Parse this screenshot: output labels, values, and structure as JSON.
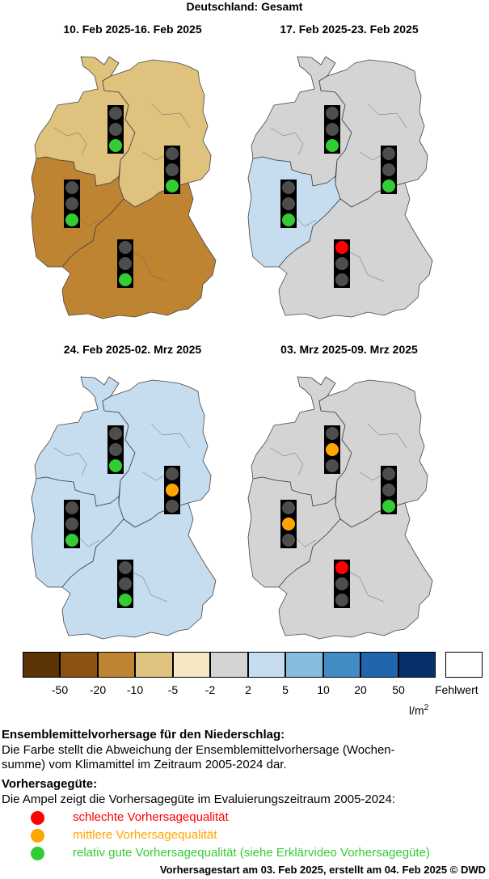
{
  "title": "Deutschland: Gesamt",
  "colors": {
    "lt_-50": "#5a3306",
    "-50_-20": "#8c5210",
    "-20_-10": "#bf8432",
    "-10_-5": "#dfc27d",
    "-5_-2": "#f6e8c3",
    "-2_2": "#d4d4d4",
    "2_5": "#c6dcef",
    "5_10": "#86bcdd",
    "10_20": "#428cc6",
    "20_50": "#2166ac",
    "gt_50": "#08306b",
    "missing": "#ffffff",
    "lamp_red": "#ff0000",
    "lamp_orange": "#ffa500",
    "lamp_green": "#33cc33",
    "lamp_off": "#4d4d4d"
  },
  "panels": [
    {
      "title": "10. Feb 2025-16. Feb 2025",
      "regions": {
        "north_west": "-10_-5",
        "north_east": "-10_-5",
        "west": "-20_-10",
        "south": "-20_-10"
      },
      "traffic_lights": {
        "north_west": "green",
        "north_east": "green",
        "west": "green",
        "south": "green"
      }
    },
    {
      "title": "17. Feb 2025-23. Feb 2025",
      "regions": {
        "north_west": "-2_2",
        "north_east": "-2_2",
        "west": "2_5",
        "south": "-2_2"
      },
      "traffic_lights": {
        "north_west": "green",
        "north_east": "green",
        "west": "green",
        "south": "red"
      }
    },
    {
      "title": "24. Feb 2025-02. Mrz 2025",
      "regions": {
        "north_west": "2_5",
        "north_east": "2_5",
        "west": "2_5",
        "south": "2_5"
      },
      "traffic_lights": {
        "north_west": "green",
        "north_east": "orange",
        "west": "green",
        "south": "green"
      }
    },
    {
      "title": "03. Mrz 2025-09. Mrz 2025",
      "regions": {
        "north_west": "-2_2",
        "north_east": "-2_2",
        "west": "-2_2",
        "south": "-2_2"
      },
      "traffic_lights": {
        "north_west": "orange",
        "north_east": "green",
        "west": "orange",
        "south": "red"
      }
    }
  ],
  "colorbar": {
    "ticks": [
      "-50",
      "-20",
      "-10",
      "-5",
      "-2",
      "2",
      "5",
      "10",
      "20",
      "50"
    ],
    "missing_label": "Fehlwert",
    "unit": "l/m",
    "unit_sup": "2"
  },
  "legend": {
    "heading1": "Ensemblemittelvorhersage für den Niederschlag:",
    "text1_line1": "Die Farbe stellt die Abweichung der Ensemblemittelvorhersage (Wochen-",
    "text1_line2": "summe) vom Klimamittel im Zeitraum 2005-2024 dar.",
    "heading2": "Vorhersagegüte:",
    "text2": "Die Ampel zeigt die Vorhersagegüte im Evaluierungszeitraum 2005-2024:",
    "items": [
      {
        "label": "schlechte Vorhersagequalität",
        "color": "#ff0000"
      },
      {
        "label": "mittlere Vorhersagequalität",
        "color": "#ffa500"
      },
      {
        "label": "relativ gute Vorhersagequalität (siehe Erklärvideo Vorhersagegüte)",
        "color": "#33cc33"
      }
    ]
  },
  "footer": "Vorhersagestart am 03. Feb 2025, erstellt am 04. Feb 2025 © DWD"
}
